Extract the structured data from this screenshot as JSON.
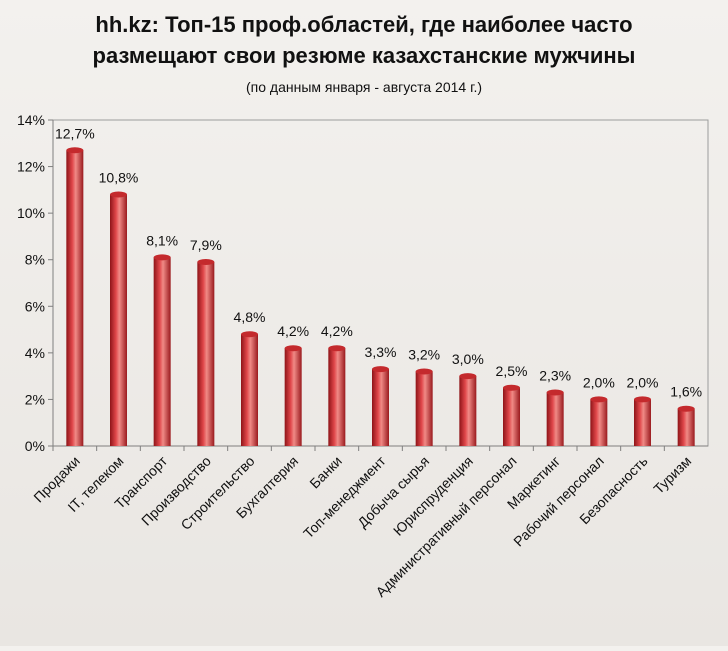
{
  "chart_data": {
    "type": "bar",
    "title_lines": [
      "hh.kz: Топ-15 проф.областей, где наиболее часто",
      "размещают свои резюме казахстанские  мужчины"
    ],
    "subtitle": "(по данным января - августа 2014 г.)",
    "categories": [
      "Продажи",
      "IT, телеком",
      "Транспорт",
      "Производство",
      "Строительство",
      "Бухгалтерия",
      "Банки",
      "Топ-менеджмент",
      "Добыча сырья",
      "Юриспруденция",
      "Административный персонал",
      "Маркетинг",
      "Рабочий персонал",
      "Безопасность",
      "Туризм"
    ],
    "values": [
      12.7,
      10.8,
      8.1,
      7.9,
      4.8,
      4.2,
      4.2,
      3.3,
      3.2,
      3.0,
      2.5,
      2.3,
      2.0,
      2.0,
      1.6
    ],
    "data_labels": [
      "12,7%",
      "10,8%",
      "8,1%",
      "7,9%",
      "4,8%",
      "4,2%",
      "4,2%",
      "3,3%",
      "3,2%",
      "3,0%",
      "2,5%",
      "2,3%",
      "2,0%",
      "2,0%",
      "1,6%"
    ],
    "y_ticks": [
      "0%",
      "2%",
      "4%",
      "6%",
      "8%",
      "10%",
      "12%",
      "14%"
    ],
    "ylim": [
      0,
      14
    ],
    "grid": false,
    "legend": "none",
    "colors": {
      "bar_dark": "#8e1418",
      "bar_mid": "#d8383a",
      "bar_light": "#f08a86",
      "axis": "#7f7f7f",
      "plot_border": "#9c9c9c"
    }
  }
}
